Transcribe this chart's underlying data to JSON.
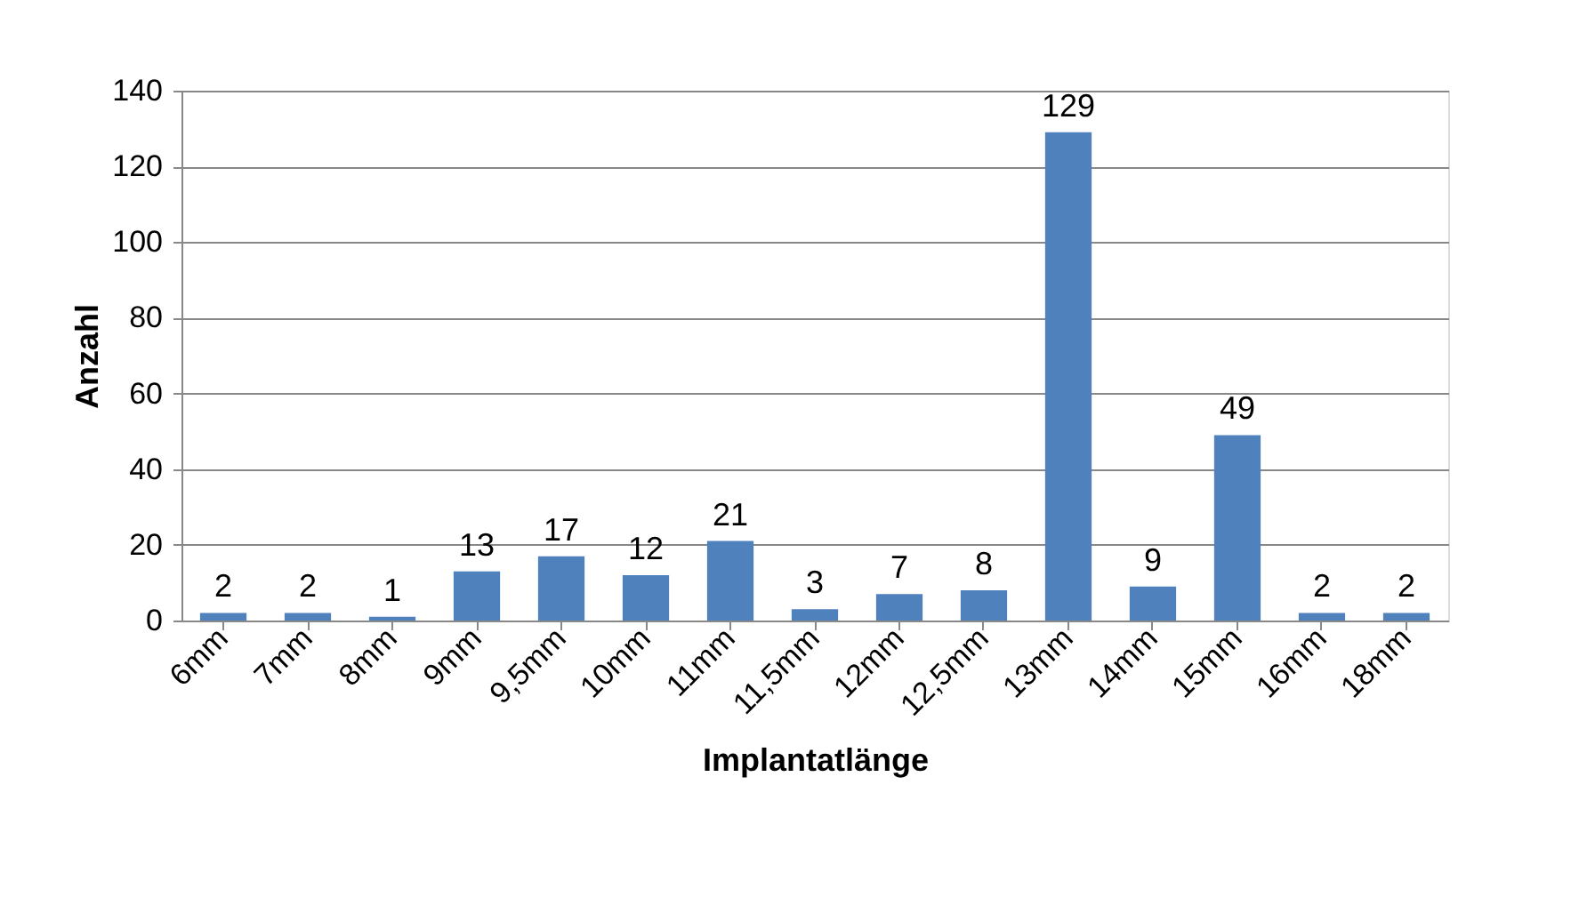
{
  "chart_data": {
    "type": "bar",
    "xlabel": "Implantatlänge",
    "ylabel": "Anzahl",
    "categories": [
      "6mm",
      "7mm",
      "8mm",
      "9mm",
      "9,5mm",
      "10mm",
      "11mm",
      "11,5mm",
      "12mm",
      "12,5mm",
      "13mm",
      "14mm",
      "15mm",
      "16mm",
      "18mm"
    ],
    "values": [
      2,
      2,
      1,
      13,
      17,
      12,
      21,
      3,
      7,
      8,
      129,
      9,
      49,
      2,
      2
    ],
    "color": "#4f81bd",
    "ylim": [
      0,
      140
    ],
    "yticks": [
      0,
      20,
      40,
      60,
      80,
      100,
      120,
      140
    ],
    "grid": "y",
    "data_labels": true
  }
}
